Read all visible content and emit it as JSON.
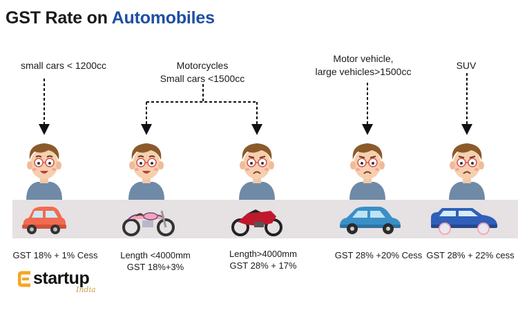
{
  "title": {
    "main": "GST Rate on ",
    "accent": "Automobiles"
  },
  "categories": [
    {
      "label_lines": [
        "small cars < 1200cc"
      ]
    },
    {
      "label_lines": [
        "Motorcycles",
        "Small cars <1500cc"
      ]
    },
    {
      "label_lines": [
        "Motor vehicle,",
        "large vehicles>1500cc"
      ]
    },
    {
      "label_lines": [
        "SUV"
      ]
    }
  ],
  "items": [
    {
      "vehicle_icon": "small-car-icon",
      "vehicle_color": "#f26b4f",
      "mood": "happy",
      "rate_lines": [
        "GST 18% + 1% Cess"
      ]
    },
    {
      "vehicle_icon": "cruiser-motorcycle-icon",
      "vehicle_color": "#f3a6b8",
      "mood": "happy",
      "rate_lines": [
        "Length <4000mm",
        "GST 18%+3%"
      ]
    },
    {
      "vehicle_icon": "sport-motorcycle-icon",
      "vehicle_color": "#c0182c",
      "mood": "sad",
      "rate_lines": [
        "Length>4000mm",
        "GST 28% + 17%"
      ]
    },
    {
      "vehicle_icon": "sedan-car-icon",
      "vehicle_color": "#3a8fc7",
      "mood": "sad",
      "rate_lines": [
        "GST 28% +20% Cess"
      ]
    },
    {
      "vehicle_icon": "suv-car-icon",
      "vehicle_color": "#2f5fb8",
      "mood": "sad",
      "rate_lines": [
        "GST 28% + 22% cess"
      ]
    }
  ],
  "logo": {
    "text": "startup",
    "sub": "India",
    "mark_color": "#f5a623"
  }
}
